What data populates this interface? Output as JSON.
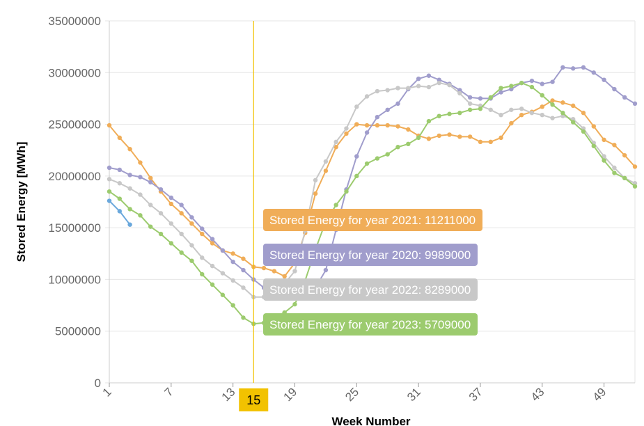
{
  "chart_data": {
    "type": "line",
    "xlabel": "Week Number",
    "ylabel": "Stored Energy [MWh]",
    "xlim": [
      1,
      52
    ],
    "ylim": [
      0,
      35000000
    ],
    "y_ticks": [
      0,
      5000000,
      10000000,
      15000000,
      20000000,
      25000000,
      30000000,
      35000000
    ],
    "x_ticks": [
      1,
      7,
      13,
      19,
      25,
      31,
      37,
      43,
      49
    ],
    "grid": true,
    "cursor": {
      "week": 15,
      "label": "15",
      "color": "#f2c200"
    },
    "series": [
      {
        "key": "y2021",
        "color": "#f0ad58",
        "x": [
          1,
          2,
          3,
          4,
          5,
          6,
          7,
          8,
          9,
          10,
          11,
          12,
          13,
          14,
          15,
          16,
          17,
          18,
          19,
          20,
          21,
          22,
          23,
          24,
          25,
          26,
          27,
          28,
          29,
          30,
          31,
          32,
          33,
          34,
          35,
          36,
          37,
          38,
          39,
          40,
          41,
          42,
          43,
          44,
          45,
          46,
          47,
          48,
          49,
          50,
          51,
          52
        ],
        "values": [
          24900000,
          23700000,
          22600000,
          21300000,
          19800000,
          18500000,
          17300000,
          16400000,
          15400000,
          14400000,
          13500000,
          12800000,
          12500000,
          12000000,
          11211000,
          11100000,
          10800000,
          10300000,
          11600000,
          14500000,
          18300000,
          20500000,
          22800000,
          24100000,
          25000000,
          24900000,
          24900000,
          24900000,
          24800000,
          24500000,
          23900000,
          23600000,
          23900000,
          24000000,
          23800000,
          23800000,
          23300000,
          23300000,
          23700000,
          25100000,
          25900000,
          26200000,
          26700000,
          27300000,
          27100000,
          26800000,
          26100000,
          24800000,
          23500000,
          23000000,
          22000000,
          20900000
        ]
      },
      {
        "key": "y2020",
        "color": "#a09dcc",
        "x": [
          1,
          2,
          3,
          4,
          5,
          6,
          7,
          8,
          9,
          10,
          11,
          12,
          13,
          14,
          15,
          16,
          17,
          18,
          19,
          20,
          21,
          22,
          23,
          24,
          25,
          26,
          27,
          28,
          29,
          30,
          31,
          32,
          33,
          34,
          35,
          36,
          37,
          38,
          39,
          40,
          41,
          42,
          43,
          44,
          45,
          46,
          47,
          48,
          49,
          50,
          51,
          52
        ],
        "values": [
          20800000,
          20600000,
          20100000,
          19900000,
          19400000,
          18700000,
          17900000,
          17200000,
          16000000,
          14900000,
          13900000,
          12800000,
          11700000,
          10900000,
          9989000,
          9200000,
          8700000,
          8400000,
          8300000,
          8600000,
          9200000,
          10900000,
          14800000,
          18700000,
          21900000,
          24200000,
          25700000,
          26400000,
          27000000,
          28400000,
          29400000,
          29700000,
          29300000,
          28900000,
          28300000,
          27600000,
          27500000,
          27500000,
          28100000,
          28400000,
          29000000,
          29200000,
          28900000,
          29100000,
          30500000,
          30400000,
          30500000,
          30000000,
          29300000,
          28400000,
          27600000,
          27000000
        ]
      },
      {
        "key": "y2022",
        "color": "#c8c8c8",
        "x": [
          1,
          2,
          3,
          4,
          5,
          6,
          7,
          8,
          9,
          10,
          11,
          12,
          13,
          14,
          15,
          16,
          17,
          18,
          19,
          20,
          21,
          22,
          23,
          24,
          25,
          26,
          27,
          28,
          29,
          30,
          31,
          32,
          33,
          34,
          35,
          36,
          37,
          38,
          39,
          40,
          41,
          42,
          43,
          44,
          45,
          46,
          47,
          48,
          49,
          50,
          51,
          52
        ],
        "values": [
          19700000,
          19300000,
          18800000,
          18200000,
          17200000,
          16400000,
          15400000,
          14400000,
          13300000,
          12100000,
          11300000,
          10600000,
          9900000,
          9200000,
          8289000,
          8300000,
          8700000,
          9600000,
          10800000,
          14700000,
          19600000,
          21400000,
          23300000,
          24600000,
          26700000,
          27700000,
          28200000,
          28300000,
          28500000,
          28500000,
          28700000,
          28600000,
          29000000,
          28800000,
          28000000,
          27000000,
          26800000,
          26400000,
          25900000,
          26400000,
          26500000,
          26100000,
          25900000,
          25600000,
          25800000,
          25500000,
          24600000,
          23200000,
          21900000,
          20800000,
          19800000,
          19300000
        ]
      },
      {
        "key": "y2023",
        "color": "#9ccb6e",
        "x": [
          1,
          2,
          3,
          4,
          5,
          6,
          7,
          8,
          9,
          10,
          11,
          12,
          13,
          14,
          15,
          16,
          17,
          18,
          19,
          20,
          21,
          22,
          23,
          24,
          25,
          26,
          27,
          28,
          29,
          30,
          31,
          32,
          33,
          34,
          35,
          36,
          37,
          38,
          39,
          40,
          41,
          42,
          43,
          44,
          45,
          46,
          47,
          48,
          49,
          50,
          51,
          52
        ],
        "values": [
          18500000,
          17800000,
          16800000,
          16200000,
          15100000,
          14400000,
          13500000,
          12600000,
          11800000,
          10500000,
          9500000,
          8500000,
          7500000,
          6300000,
          5709000,
          5800000,
          6300000,
          6800000,
          7600000,
          9900000,
          12900000,
          15600000,
          17200000,
          18500000,
          20000000,
          21200000,
          21700000,
          22100000,
          22800000,
          23100000,
          23700000,
          25300000,
          25800000,
          26000000,
          26100000,
          26400000,
          26500000,
          27600000,
          28500000,
          28700000,
          29000000,
          28600000,
          27800000,
          26900000,
          26100000,
          25200000,
          24300000,
          22900000,
          21500000,
          20300000,
          19800000,
          19000000
        ]
      },
      {
        "key": "y_current",
        "color": "#6aa8dc",
        "x": [
          1,
          2,
          3
        ],
        "values": [
          17600000,
          16600000,
          15300000
        ]
      }
    ],
    "tooltips": [
      {
        "text": "Stored Energy for year 2021: 11211000",
        "color": "#f0ad58"
      },
      {
        "text": "Stored Energy for year 2020: 9989000",
        "color": "#a09dcc"
      },
      {
        "text": "Stored Energy for year 2022: 8289000",
        "color": "#c8c8c8"
      },
      {
        "text": "Stored Energy for year 2023: 5709000",
        "color": "#9ccb6e"
      }
    ]
  }
}
